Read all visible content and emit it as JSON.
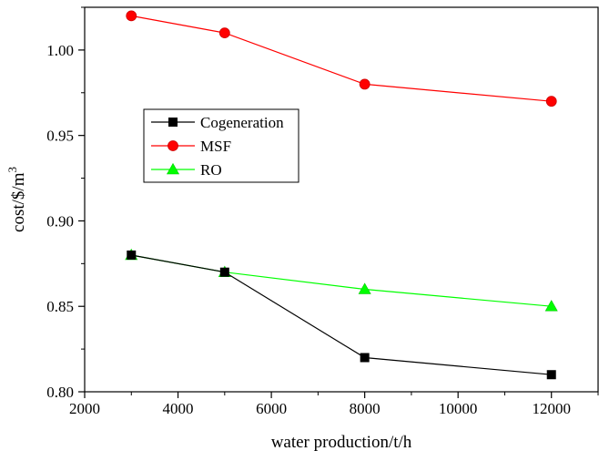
{
  "chart_data": {
    "type": "line",
    "x": [
      3000,
      5000,
      8000,
      12000
    ],
    "series": [
      {
        "name": "Cogeneration",
        "values": [
          0.88,
          0.87,
          0.82,
          0.81
        ],
        "color": "#000000",
        "marker": "square"
      },
      {
        "name": "MSF",
        "values": [
          1.02,
          1.01,
          0.98,
          0.97
        ],
        "color": "#ff0000",
        "marker": "circle"
      },
      {
        "name": "RO",
        "values": [
          0.88,
          0.87,
          0.86,
          0.85
        ],
        "color": "#00ff00",
        "marker": "triangle"
      }
    ],
    "xlabel": "water production/t/h",
    "ylabel_base": "cost/$/m",
    "ylabel_sup": "3",
    "xlim": [
      2000,
      13000
    ],
    "ylim": [
      0.8,
      1.025
    ],
    "xticks": [
      2000,
      4000,
      6000,
      8000,
      10000,
      12000
    ],
    "xtick_labels": [
      "2000",
      "4000",
      "6000",
      "8000",
      "10000",
      "12000"
    ],
    "yticks": [
      0.8,
      0.85,
      0.9,
      0.95,
      1.0
    ],
    "ytick_labels": [
      "0.80",
      "0.85",
      "0.90",
      "0.95",
      "1.00"
    ],
    "grid": false,
    "legend_position": "upper-left"
  }
}
